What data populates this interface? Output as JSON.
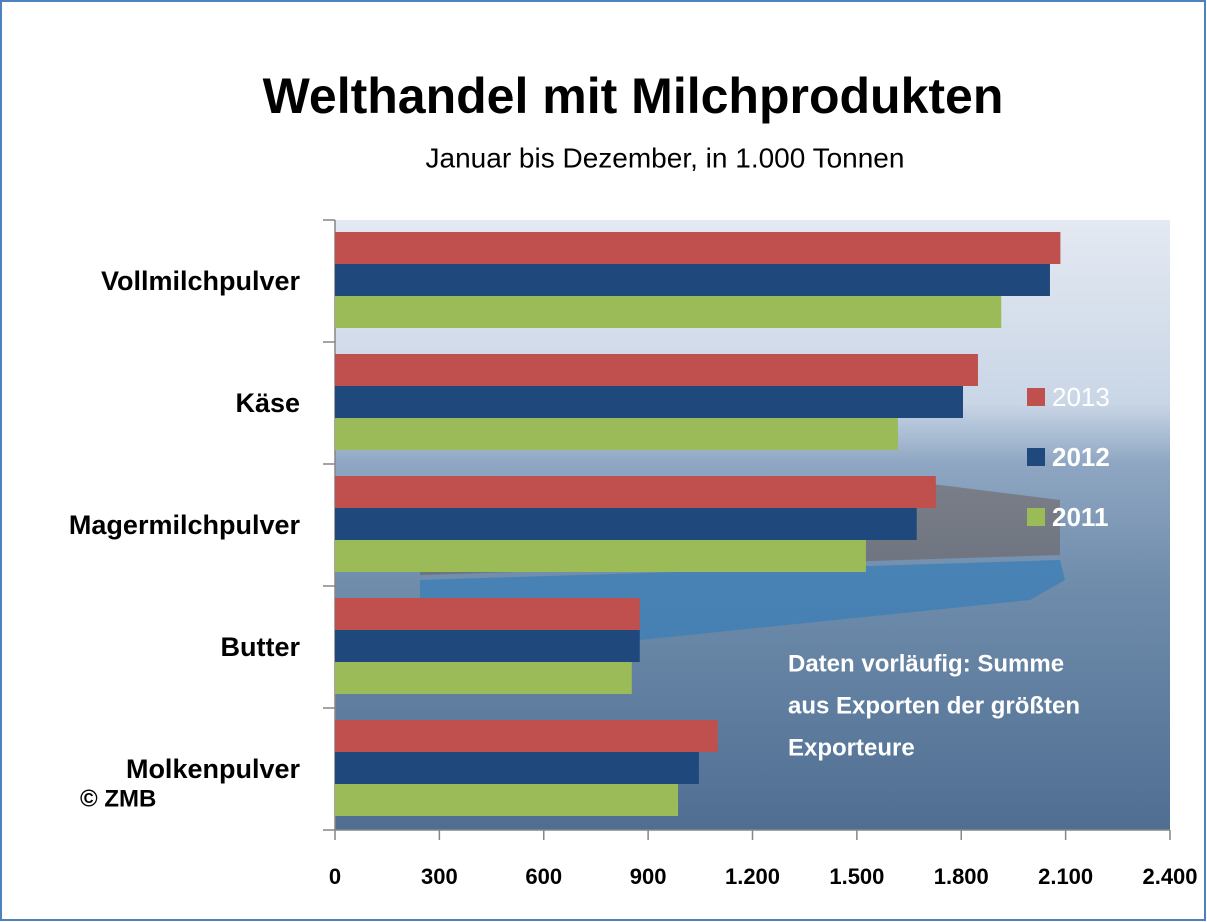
{
  "chart_data": {
    "type": "bar",
    "orientation": "horizontal",
    "title": "Welthandel mit Milchprodukten",
    "subtitle": "Januar bis Dezember, in 1.000 Tonnen",
    "categories": [
      "Vollmilchpulver",
      "Käse",
      "Magermilchpulver",
      "Butter",
      "Molkenpulver"
    ],
    "series": [
      {
        "name": "2013",
        "color": "#c0504d",
        "values": [
          2085,
          1848,
          1727,
          876,
          1100
        ]
      },
      {
        "name": "2012",
        "color": "#1f497d",
        "values": [
          2055,
          1805,
          1672,
          876,
          1046
        ]
      },
      {
        "name": "2011",
        "color": "#9bbb59",
        "values": [
          1915,
          1618,
          1526,
          853,
          986
        ]
      }
    ],
    "xlim": [
      0,
      2400
    ],
    "xticks": [
      0,
      300,
      600,
      900,
      {
        "value": 1200,
        "label": "1.200"
      },
      {
        "value": 1500,
        "label": "1.500"
      },
      {
        "value": 1800,
        "label": "1.800"
      },
      {
        "value": 2100,
        "label": "2.100"
      },
      {
        "value": 2400,
        "label": "2.400"
      }
    ],
    "legend": "right",
    "annotation": [
      "Daten vorläufig: Summe",
      "aus Exporten der größten",
      "Exporteure"
    ],
    "source": "© ZMB"
  }
}
